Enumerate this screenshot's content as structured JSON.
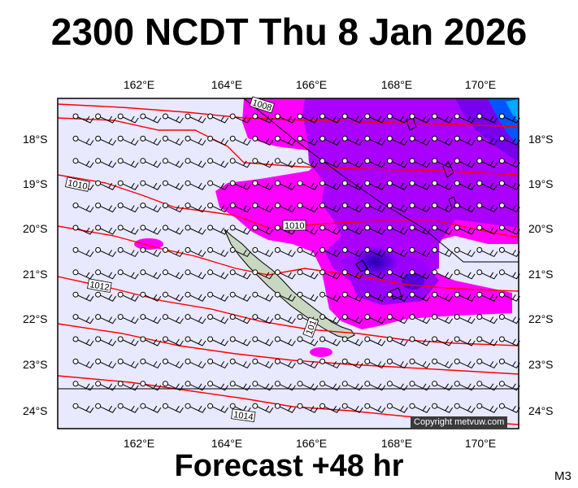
{
  "title": "2300 NCDT Thu 8 Jan 2026",
  "footer": "Forecast +48 hr",
  "model_tag": "M3",
  "copyright": "Copyright metvuw.com",
  "lon_labels": [
    "162°E",
    "164°E",
    "166°E",
    "168°E",
    "170°E"
  ],
  "lat_labels": [
    "18°S",
    "19°S",
    "20°S",
    "21°S",
    "22°S",
    "23°S",
    "24°S"
  ],
  "isobar_labels": [
    "1008",
    "1010",
    "1010",
    "1012",
    "1014",
    "101"
  ],
  "colors": {
    "sea_bg": "#e8e8ff",
    "rain_light": "#ff00ff",
    "rain_med": "#9900ff",
    "rain_heavy": "#3300cc",
    "rain_extreme": "#0066ff",
    "isobar": "#ff0000",
    "land": "#c8d8c0"
  }
}
